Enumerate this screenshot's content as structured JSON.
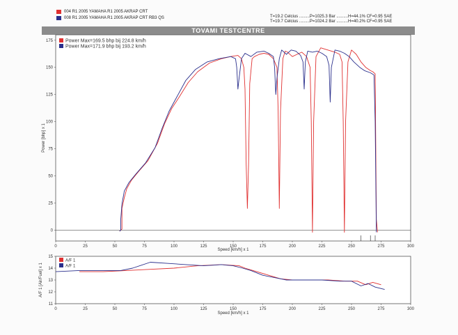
{
  "header": {
    "runs": [
      {
        "label": "004 R1 2005    YAMAHA R1 2005 AKRAP CRT",
        "color": "#e03030"
      },
      {
        "label": "008 R1 2005    YAMAHA R1 2005 AKRAP CRT RB3 QS",
        "color": "#2a2f8c"
      }
    ],
    "conditions": [
      "T=19.2 Celcius .........P=1025.3 Bar ..........H=44.1% CF=0.95 SAE",
      "T=19.7 Celcius .........P=1024.2 Bar ..........H=40.2% CF=0.95 SAE"
    ],
    "title": "TOVAMI TESTCENTRE"
  },
  "chart_data": [
    {
      "type": "line",
      "xlabel": "Speed [km/h] x 1",
      "ylabel": "Power [bhp] x 1",
      "xlim": [
        0,
        300
      ],
      "ylim": [
        -10,
        180
      ],
      "xticks": [
        "0",
        "25",
        "50",
        "75",
        "100",
        "125",
        "150",
        "175",
        "200",
        "225",
        "250",
        "275",
        "300"
      ],
      "yticks": [
        "0",
        "25",
        "50",
        "75",
        "100",
        "125",
        "150",
        "175"
      ],
      "grid": false,
      "legend": [
        "Power  Max=169.5 bhp bij 224.8 km/h",
        "Power  Max=171.9 bhp bij 193.2 km/h"
      ],
      "series": [
        {
          "color": "#e03030",
          "points": [
            [
              54,
              -1
            ],
            [
              55,
              0
            ],
            [
              56,
              1
            ],
            [
              56,
              20
            ],
            [
              58,
              30
            ],
            [
              60,
              38
            ],
            [
              64,
              46
            ],
            [
              70,
              54
            ],
            [
              78,
              64
            ],
            [
              86,
              80
            ],
            [
              92,
              98
            ],
            [
              98,
              112
            ],
            [
              104,
              122
            ],
            [
              112,
              136
            ],
            [
              120,
              146
            ],
            [
              130,
              154
            ],
            [
              140,
              158
            ],
            [
              148,
              160
            ],
            [
              154,
              161
            ],
            [
              157,
              158
            ],
            [
              159,
              150
            ],
            [
              160,
              130
            ],
            [
              161,
              60
            ],
            [
              162,
              20
            ],
            [
              163,
              60
            ],
            [
              164,
              135
            ],
            [
              166,
              158
            ],
            [
              168,
              160
            ],
            [
              172,
              162
            ],
            [
              176,
              163
            ],
            [
              180,
              162
            ],
            [
              184,
              158
            ],
            [
              187,
              150
            ],
            [
              188,
              110
            ],
            [
              189,
              20
            ],
            [
              190,
              110
            ],
            [
              192,
              158
            ],
            [
              194,
              165
            ],
            [
              196,
              164
            ],
            [
              200,
              160
            ],
            [
              204,
              162
            ],
            [
              208,
              164
            ],
            [
              212,
              160
            ],
            [
              215,
              150
            ],
            [
              216,
              100
            ],
            [
              217,
              -2
            ],
            [
              218,
              100
            ],
            [
              220,
              160
            ],
            [
              224,
              168
            ],
            [
              230,
              166
            ],
            [
              236,
              164
            ],
            [
              240,
              162
            ],
            [
              242,
              155
            ],
            [
              243,
              100
            ],
            [
              244,
              -2
            ],
            [
              245,
              100
            ],
            [
              247,
              155
            ],
            [
              250,
              166
            ],
            [
              254,
              162
            ],
            [
              258,
              155
            ],
            [
              262,
              150
            ],
            [
              266,
              147
            ],
            [
              268,
              146
            ],
            [
              270,
              144
            ],
            [
              271,
              10
            ],
            [
              272,
              -2
            ]
          ]
        },
        {
          "color": "#2a2f8c",
          "points": [
            [
              54,
              -1
            ],
            [
              55,
              0
            ],
            [
              55,
              10
            ],
            [
              56,
              24
            ],
            [
              58,
              36
            ],
            [
              62,
              44
            ],
            [
              68,
              52
            ],
            [
              76,
              62
            ],
            [
              84,
              76
            ],
            [
              90,
              94
            ],
            [
              96,
              110
            ],
            [
              102,
              122
            ],
            [
              110,
              138
            ],
            [
              118,
              148
            ],
            [
              128,
              155
            ],
            [
              138,
              158
            ],
            [
              148,
              160
            ],
            [
              152,
              158
            ],
            [
              153,
              150
            ],
            [
              154,
              130
            ],
            [
              155,
              140
            ],
            [
              157,
              158
            ],
            [
              160,
              163
            ],
            [
              165,
              160
            ],
            [
              170,
              164
            ],
            [
              176,
              165
            ],
            [
              180,
              163
            ],
            [
              184,
              160
            ],
            [
              185,
              150
            ],
            [
              186,
              125
            ],
            [
              187,
              140
            ],
            [
              189,
              158
            ],
            [
              191,
              166
            ],
            [
              195,
              162
            ],
            [
              199,
              166
            ],
            [
              203,
              165
            ],
            [
              207,
              161
            ],
            [
              209,
              155
            ],
            [
              210,
              130
            ],
            [
              211,
              155
            ],
            [
              213,
              165
            ],
            [
              217,
              164
            ],
            [
              221,
              165
            ],
            [
              225,
              163
            ],
            [
              229,
              160
            ],
            [
              231,
              152
            ],
            [
              232,
              118
            ],
            [
              233,
              150
            ],
            [
              236,
              166
            ],
            [
              240,
              165
            ],
            [
              244,
              163
            ],
            [
              248,
              160
            ],
            [
              252,
              155
            ],
            [
              257,
              150
            ],
            [
              261,
              147
            ],
            [
              266,
              145
            ],
            [
              269,
              143
            ],
            [
              270,
              100
            ],
            [
              271,
              -2
            ]
          ]
        }
      ]
    },
    {
      "type": "line",
      "xlabel": "Speed [km/h] x 1",
      "ylabel": "A/F 1 [Air/Fuel] x 1",
      "xlim": [
        0,
        300
      ],
      "ylim": [
        11,
        15
      ],
      "xticks": [
        "0",
        "25",
        "50",
        "75",
        "100",
        "125",
        "150",
        "175",
        "200",
        "225",
        "250",
        "275",
        "300"
      ],
      "yticks": [
        "11",
        "12",
        "13",
        "14",
        "15"
      ],
      "grid": false,
      "legend": [
        "A/F 1",
        "A/F 1"
      ],
      "series": [
        {
          "color": "#e03030",
          "points": [
            [
              20,
              13.7
            ],
            [
              40,
              13.7
            ],
            [
              60,
              13.8
            ],
            [
              80,
              13.9
            ],
            [
              100,
              14.0
            ],
            [
              120,
              14.2
            ],
            [
              140,
              14.3
            ],
            [
              155,
              14.2
            ],
            [
              160,
              14.0
            ],
            [
              170,
              13.7
            ],
            [
              180,
              13.4
            ],
            [
              190,
              13.1
            ],
            [
              200,
              13.0
            ],
            [
              215,
              13.0
            ],
            [
              230,
              13.0
            ],
            [
              245,
              12.9
            ],
            [
              255,
              12.9
            ],
            [
              262,
              12.6
            ],
            [
              268,
              12.8
            ],
            [
              275,
              12.6
            ]
          ]
        },
        {
          "color": "#2a2f8c",
          "points": [
            [
              0,
              13.7
            ],
            [
              20,
              13.8
            ],
            [
              40,
              13.8
            ],
            [
              55,
              13.8
            ],
            [
              65,
              14.0
            ],
            [
              80,
              14.5
            ],
            [
              95,
              14.4
            ],
            [
              110,
              14.3
            ],
            [
              125,
              14.2
            ],
            [
              140,
              14.3
            ],
            [
              150,
              14.2
            ],
            [
              158,
              14.0
            ],
            [
              165,
              13.8
            ],
            [
              175,
              13.4
            ],
            [
              185,
              13.2
            ],
            [
              195,
              13.0
            ],
            [
              210,
              13.0
            ],
            [
              225,
              13.0
            ],
            [
              240,
              12.9
            ],
            [
              250,
              12.9
            ],
            [
              258,
              12.5
            ],
            [
              264,
              12.7
            ],
            [
              270,
              12.4
            ],
            [
              278,
              12.2
            ]
          ]
        }
      ]
    }
  ]
}
